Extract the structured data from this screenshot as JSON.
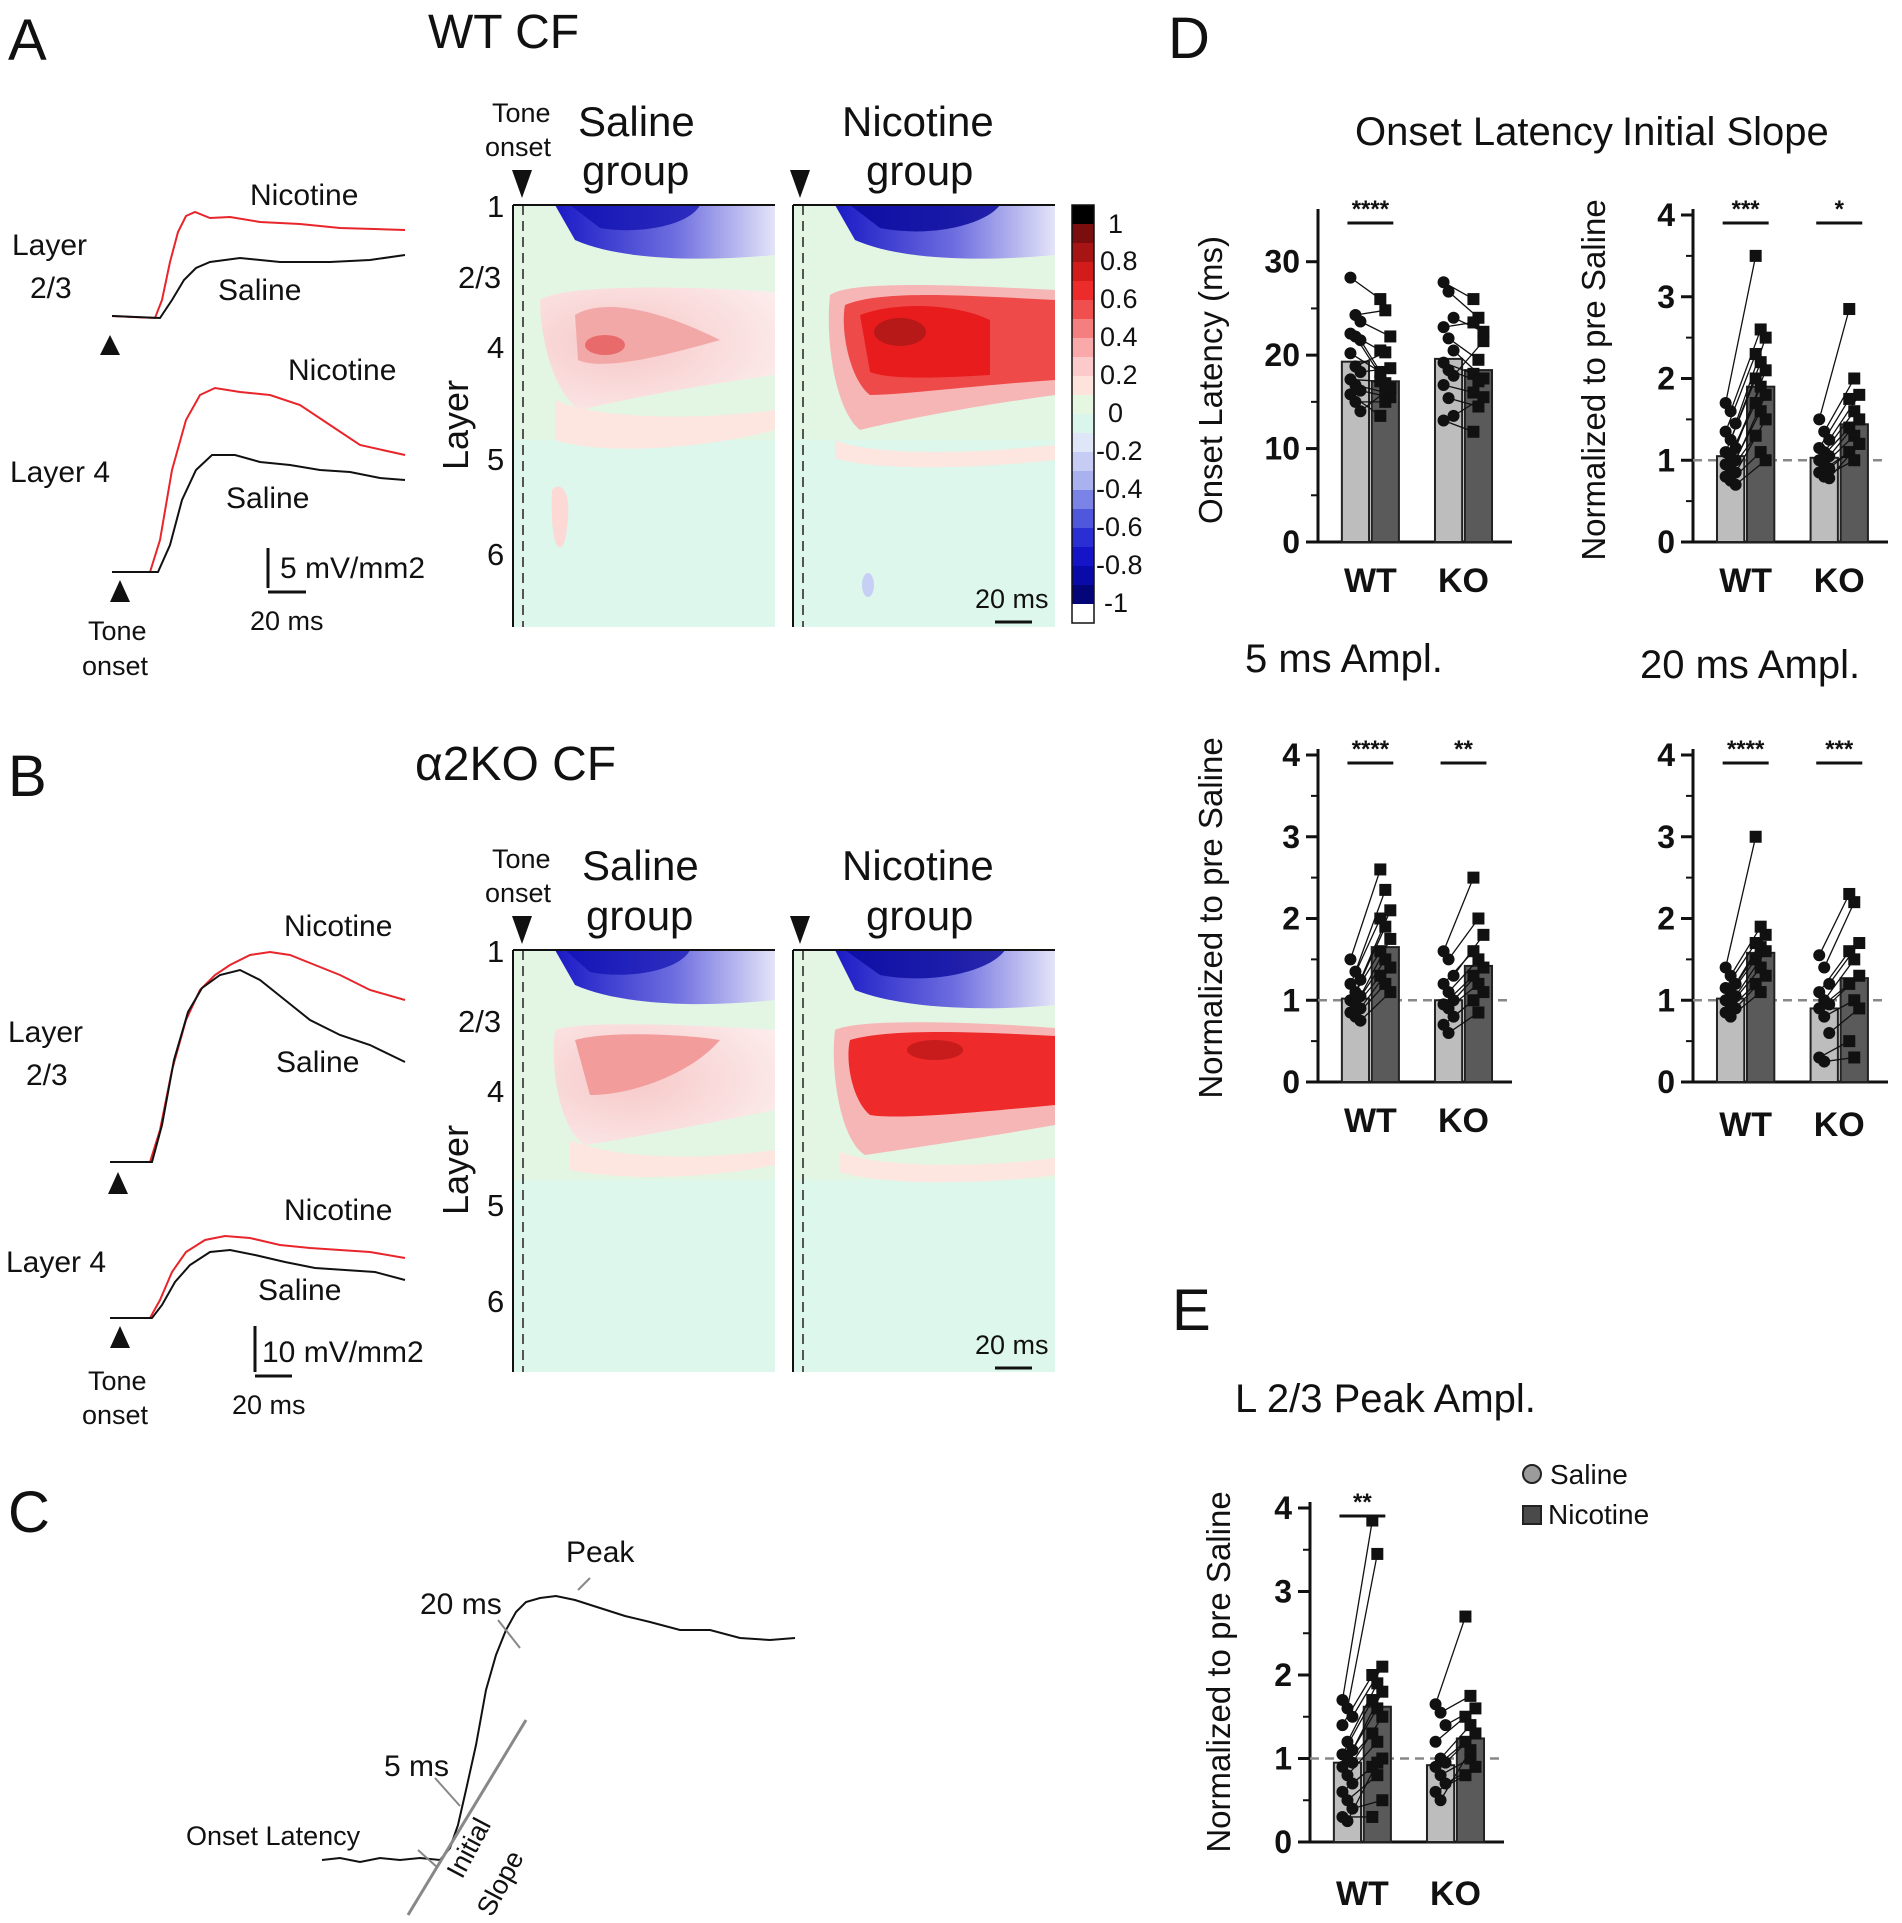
{
  "panels": {
    "A": "A",
    "B": "B",
    "C": "C",
    "D": "D",
    "E": "E"
  },
  "panel_a": {
    "title": "WT CF",
    "heatmap_saline_title": [
      "Saline",
      "group"
    ],
    "heatmap_nicotine_title": [
      "Nicotine",
      "group"
    ],
    "tone_onset": [
      "Tone",
      "onset"
    ],
    "layer_axis_title": "Layer",
    "layer_ticks": [
      "1",
      "2/3",
      "4",
      "5",
      "6"
    ],
    "time_scale": "20 ms",
    "colorbar_ticks": [
      "1",
      "0.8",
      "0.6",
      "0.4",
      "0.2",
      "0",
      "-0.2",
      "-0.4",
      "-0.6",
      "-0.8",
      "-1"
    ],
    "trace_l23": [
      "Layer",
      "2/3"
    ],
    "trace_l4": "Layer 4",
    "nicotine": "Nicotine",
    "saline": "Saline",
    "amp_scale": "5 mV/mm2",
    "trace_time_scale": "20 ms"
  },
  "panel_b": {
    "title": "α2KO CF",
    "heatmap_saline_title": [
      "Saline",
      "group"
    ],
    "heatmap_nicotine_title": [
      "Nicotine",
      "group"
    ],
    "tone_onset": [
      "Tone",
      "onset"
    ],
    "layer_axis_title": "Layer",
    "layer_ticks": [
      "1",
      "2/3",
      "4",
      "5",
      "6"
    ],
    "time_scale": "20 ms",
    "trace_l23": [
      "Layer",
      "2/3"
    ],
    "trace_l4": "Layer 4",
    "nicotine": "Nicotine",
    "saline": "Saline",
    "amp_scale": "10 mV/mm2",
    "trace_time_scale": "20 ms"
  },
  "panel_c": {
    "peak": "Peak",
    "t20": "20 ms",
    "t5": "5 ms",
    "onset_latency": "Onset Latency",
    "initial_slope": [
      "Initial",
      "Slope"
    ]
  },
  "legend": {
    "saline": "Saline",
    "nicotine": "Nicotine"
  },
  "colors": {
    "saline_bar": "#bdbdbd",
    "nicotine_bar": "#5a5a5a",
    "nicotine_trace": "#e8252b",
    "saline_trace": "#111111"
  },
  "chart_data": [
    {
      "type": "bar",
      "id": "onset",
      "title": "Onset Latency",
      "xlabel": "",
      "ylabel": "Onset Latency (ms)",
      "categories": [
        "WT",
        "KO"
      ],
      "series": [
        {
          "name": "Saline",
          "values": [
            19.3,
            19.6
          ]
        },
        {
          "name": "Nicotine",
          "values": [
            17.2,
            18.4
          ]
        }
      ],
      "ylim": [
        0,
        35
      ],
      "yticks": [
        0,
        10,
        20,
        30
      ],
      "significance": [
        "****",
        ""
      ],
      "reference_line": null,
      "pairs": [
        [
          [
            28.3,
            24.3,
            23.6,
            22.3,
            22.0,
            21.6,
            20.2,
            18.8,
            18.2,
            17.4,
            16.8,
            16.2,
            15.8,
            15.0,
            14.0
          ],
          [
            26.0,
            24.8,
            22.0,
            20.5,
            17.0,
            16.5,
            18.2,
            20.3,
            18.6,
            17.2,
            16.0,
            15.5,
            13.5,
            15.0,
            16.5
          ]
        ],
        [
          [
            27.8,
            26.8,
            24.0,
            23.0,
            21.8,
            20.5,
            19.2,
            18.4,
            17.8,
            16.8,
            15.4,
            13.5,
            13.0
          ],
          [
            26.0,
            24.0,
            22.5,
            23.5,
            19.5,
            17.5,
            18.0,
            17.2,
            21.5,
            16.0,
            14.5,
            15.5,
            11.8
          ]
        ]
      ]
    },
    {
      "type": "bar",
      "id": "slope",
      "title": "Initial Slope",
      "xlabel": "",
      "ylabel": "Normalized to pre Saline",
      "categories": [
        "WT",
        "KO"
      ],
      "series": [
        {
          "name": "Saline",
          "values": [
            1.05,
            1.03
          ]
        },
        {
          "name": "Nicotine",
          "values": [
            1.9,
            1.44
          ]
        }
      ],
      "ylim": [
        0,
        4
      ],
      "yticks": [
        0,
        1,
        2,
        3,
        4
      ],
      "significance": [
        "***",
        "*"
      ],
      "reference_line": 1,
      "pairs": [
        [
          [
            1.7,
            1.6,
            1.45,
            1.35,
            1.25,
            1.15,
            1.1,
            1.05,
            1.0,
            0.95,
            0.9,
            0.85,
            0.8,
            0.75,
            0.7
          ],
          [
            3.5,
            2.6,
            2.5,
            2.3,
            2.2,
            2.1,
            2.0,
            1.9,
            1.8,
            1.7,
            1.6,
            1.5,
            1.3,
            1.1,
            1.0
          ]
        ],
        [
          [
            1.5,
            1.35,
            1.25,
            1.15,
            1.1,
            1.05,
            1.0,
            0.95,
            0.9,
            0.85,
            0.8,
            0.78
          ],
          [
            2.85,
            2.0,
            1.8,
            1.75,
            1.6,
            1.5,
            1.4,
            1.3,
            1.2,
            1.1,
            1.0,
            1.2
          ]
        ]
      ]
    },
    {
      "type": "bar",
      "id": "amp5",
      "title": "5 ms Ampl.",
      "xlabel": "",
      "ylabel": "Normalized to pre Saline",
      "categories": [
        "WT",
        "KO"
      ],
      "series": [
        {
          "name": "Saline",
          "values": [
            1.02,
            1.0
          ]
        },
        {
          "name": "Nicotine",
          "values": [
            1.65,
            1.42
          ]
        }
      ],
      "ylim": [
        0,
        4
      ],
      "yticks": [
        0,
        1,
        2,
        3,
        4
      ],
      "significance": [
        "****",
        "**"
      ],
      "reference_line": 1,
      "pairs": [
        [
          [
            1.5,
            1.35,
            1.25,
            1.2,
            1.1,
            1.05,
            1.0,
            0.95,
            0.9,
            0.85,
            0.8,
            0.75
          ],
          [
            2.6,
            2.35,
            2.1,
            2.0,
            1.9,
            1.75,
            1.6,
            1.5,
            1.4,
            1.3,
            1.2,
            1.1
          ]
        ],
        [
          [
            1.6,
            1.5,
            1.3,
            1.2,
            1.1,
            1.0,
            0.95,
            0.9,
            0.8,
            0.7,
            0.6
          ],
          [
            2.5,
            2.0,
            1.8,
            1.6,
            1.5,
            1.4,
            1.3,
            1.2,
            1.1,
            1.0,
            0.85
          ]
        ]
      ]
    },
    {
      "type": "bar",
      "id": "amp20",
      "title": "20 ms Ampl.",
      "xlabel": "",
      "ylabel": "",
      "categories": [
        "WT",
        "KO"
      ],
      "series": [
        {
          "name": "Saline",
          "values": [
            1.02,
            0.9
          ]
        },
        {
          "name": "Nicotine",
          "values": [
            1.58,
            1.27
          ]
        }
      ],
      "ylim": [
        0,
        4
      ],
      "yticks": [
        0,
        1,
        2,
        3,
        4
      ],
      "significance": [
        "****",
        "***"
      ],
      "reference_line": 1,
      "pairs": [
        [
          [
            1.4,
            1.3,
            1.2,
            1.15,
            1.1,
            1.05,
            1.0,
            0.95,
            0.9,
            0.85,
            0.8
          ],
          [
            3.0,
            1.9,
            1.8,
            1.7,
            1.65,
            1.6,
            1.5,
            1.4,
            1.3,
            1.2,
            1.1
          ]
        ],
        [
          [
            1.55,
            1.4,
            1.2,
            1.1,
            1.0,
            0.95,
            0.9,
            0.8,
            0.6,
            0.3,
            0.25
          ],
          [
            2.3,
            2.2,
            1.7,
            1.6,
            1.5,
            1.3,
            1.2,
            1.0,
            0.9,
            0.5,
            0.3
          ]
        ]
      ]
    },
    {
      "type": "bar",
      "id": "peak",
      "title": "L 2/3 Peak Ampl.",
      "xlabel": "",
      "ylabel": "Normalized to pre Saline",
      "categories": [
        "WT",
        "KO"
      ],
      "series": [
        {
          "name": "Saline",
          "values": [
            0.95,
            0.92
          ]
        },
        {
          "name": "Nicotine",
          "values": [
            1.62,
            1.24
          ]
        }
      ],
      "ylim": [
        0,
        4
      ],
      "yticks": [
        0,
        1,
        2,
        3,
        4
      ],
      "significance": [
        "**",
        ""
      ],
      "reference_line": 1,
      "pairs": [
        [
          [
            1.7,
            1.6,
            1.5,
            1.4,
            1.2,
            1.1,
            1.05,
            1.0,
            0.95,
            0.9,
            0.8,
            0.7,
            0.6,
            0.5,
            0.4,
            0.3,
            0.25
          ],
          [
            3.85,
            3.45,
            2.1,
            2.0,
            1.9,
            1.8,
            1.7,
            1.6,
            1.5,
            1.3,
            1.2,
            1.0,
            0.9,
            0.8,
            0.5,
            0.3,
            0.95
          ]
        ],
        [
          [
            1.65,
            1.55,
            1.4,
            1.2,
            1.0,
            0.95,
            0.9,
            0.8,
            0.7,
            0.6,
            0.5
          ],
          [
            2.7,
            1.75,
            1.6,
            1.5,
            1.4,
            1.3,
            1.2,
            1.0,
            0.9,
            0.8,
            1.1
          ]
        ]
      ]
    }
  ]
}
